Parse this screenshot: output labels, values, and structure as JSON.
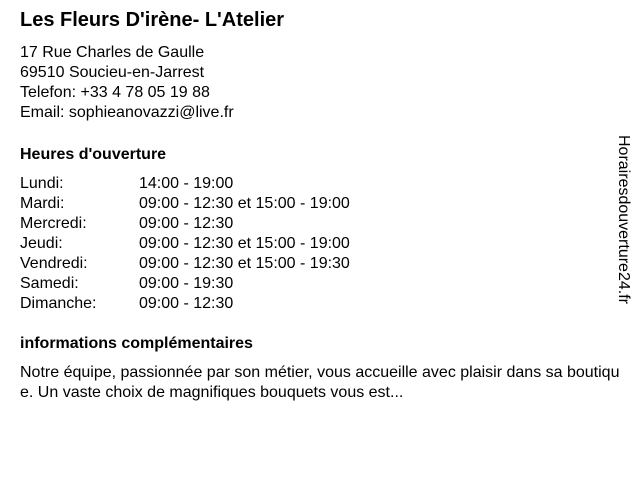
{
  "title": "Les Fleurs D'irène- L'Atelier",
  "address": {
    "street": "17 Rue Charles de Gaulle",
    "city": "69510 Soucieu-en-Jarrest",
    "phone": "Telefon: +33 4 78 05 19 88",
    "email": "Email: sophieanovazzi@live.fr"
  },
  "hours_heading": "Heures d'ouverture",
  "hours": [
    {
      "day": "Lundi:",
      "time": "14:00 - 19:00"
    },
    {
      "day": "Mardi:",
      "time": "09:00 - 12:30 et 15:00 - 19:00"
    },
    {
      "day": "Mercredi:",
      "time": "09:00 - 12:30"
    },
    {
      "day": "Jeudi:",
      "time": "09:00 - 12:30 et 15:00 - 19:00"
    },
    {
      "day": "Vendredi:",
      "time": "09:00 - 12:30 et 15:00 - 19:30"
    },
    {
      "day": "Samedi:",
      "time": "09:00 - 19:30"
    },
    {
      "day": "Dimanche:",
      "time": "09:00 - 12:30"
    }
  ],
  "info_heading": "informations complémentaires",
  "info_text": "Notre équipe, passionnée par son métier, vous accueille avec plaisir dans sa boutique. Un vaste choix de magnifiques bouquets vous est...",
  "watermark": "Horairesdouverture24.fr"
}
